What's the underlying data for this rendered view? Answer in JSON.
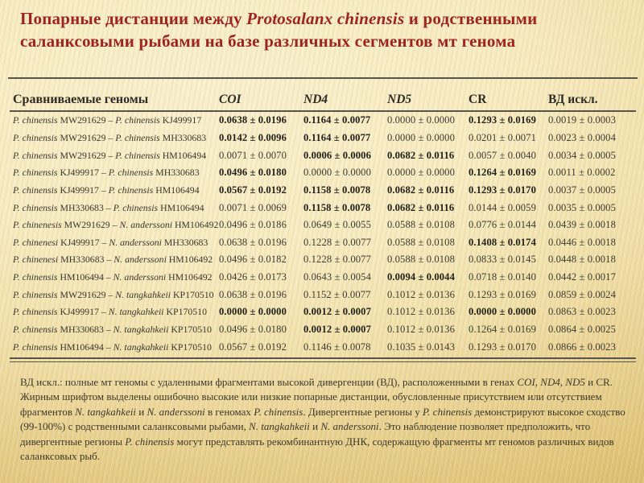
{
  "slide": {
    "title_parts": [
      [
        "Попарные дистанции между ",
        0
      ],
      [
        "Protosalanx chinensis",
        1
      ],
      [
        " и родственными саланксовыми рыбами на базе различных сегментов мт генома",
        0
      ]
    ]
  },
  "table": {
    "headers": [
      {
        "label": "Сравниваемые геномы",
        "italic": false
      },
      {
        "label": "COI",
        "italic": true
      },
      {
        "label": "ND4",
        "italic": true
      },
      {
        "label": "ND5",
        "italic": true
      },
      {
        "label": "CR",
        "italic": false
      },
      {
        "label": "ВД искл.",
        "italic": false
      }
    ],
    "rows": [
      {
        "genomes": [
          [
            "P. chinensis",
            1
          ],
          [
            " MW291629 – ",
            0
          ],
          [
            "P. chinensis",
            1
          ],
          [
            " KJ499917",
            0
          ]
        ],
        "values": [
          {
            "v": "0.0638 ± 0.0196",
            "b": true
          },
          {
            "v": "0.1164 ± 0.0077",
            "b": true
          },
          {
            "v": "0.0000 ± 0.0000",
            "b": false
          },
          {
            "v": "0.1293 ± 0.0169",
            "b": true
          },
          {
            "v": "0.0019 ± 0.0003",
            "b": false
          }
        ]
      },
      {
        "genomes": [
          [
            "P. chinensis",
            1
          ],
          [
            " MW291629 – ",
            0
          ],
          [
            "P. chinensis",
            1
          ],
          [
            " MH330683",
            0
          ]
        ],
        "values": [
          {
            "v": "0.0142 ± 0.0096",
            "b": true
          },
          {
            "v": "0.1164 ± 0.0077",
            "b": true
          },
          {
            "v": "0.0000 ± 0.0000",
            "b": false
          },
          {
            "v": "0.0201 ± 0.0071",
            "b": false
          },
          {
            "v": "0.0023 ± 0.0004",
            "b": false
          }
        ]
      },
      {
        "genomes": [
          [
            "P. chinensis",
            1
          ],
          [
            " MW291629 – ",
            0
          ],
          [
            "P. chinensis",
            1
          ],
          [
            " HM106494",
            0
          ]
        ],
        "values": [
          {
            "v": "0.0071 ± 0.0070",
            "b": false
          },
          {
            "v": "0.0006 ± 0.0006",
            "b": true
          },
          {
            "v": "0.0682 ± 0.0116",
            "b": true
          },
          {
            "v": "0.0057 ± 0.0040",
            "b": false
          },
          {
            "v": "0.0034 ± 0.0005",
            "b": false
          }
        ]
      },
      {
        "genomes": [
          [
            "P. chinensis",
            1
          ],
          [
            " KJ499917 – ",
            0
          ],
          [
            "P. chinensis",
            1
          ],
          [
            " MH330683",
            0
          ]
        ],
        "values": [
          {
            "v": "0.0496 ± 0.0180",
            "b": true
          },
          {
            "v": "0.0000 ± 0.0000",
            "b": false
          },
          {
            "v": "0.0000 ± 0.0000",
            "b": false
          },
          {
            "v": "0.1264 ± 0.0169",
            "b": true
          },
          {
            "v": "0.0011 ± 0.0002",
            "b": false
          }
        ]
      },
      {
        "genomes": [
          [
            "P. chinensis",
            1
          ],
          [
            " KJ499917 – ",
            0
          ],
          [
            "P. chinensis",
            1
          ],
          [
            " HM106494",
            0
          ]
        ],
        "values": [
          {
            "v": "0.0567 ± 0.0192",
            "b": true
          },
          {
            "v": "0.1158 ± 0.0078",
            "b": true
          },
          {
            "v": "0.0682 ± 0.0116",
            "b": true
          },
          {
            "v": "0.1293 ± 0.0170",
            "b": true
          },
          {
            "v": "0.0037 ± 0.0005",
            "b": false
          }
        ]
      },
      {
        "genomes": [
          [
            "P. chinensis",
            1
          ],
          [
            " MH330683 – ",
            0
          ],
          [
            "P. chinensis",
            1
          ],
          [
            " HM106494",
            0
          ]
        ],
        "values": [
          {
            "v": "0.0071 ± 0.0069",
            "b": false
          },
          {
            "v": "0.1158 ± 0.0078",
            "b": true
          },
          {
            "v": "0.0682 ± 0.0116",
            "b": true
          },
          {
            "v": "0.0144 ± 0.0059",
            "b": false
          },
          {
            "v": "0.0035 ± 0.0005",
            "b": false
          }
        ]
      },
      {
        "genomes": [
          [
            "P. chinenesis",
            1
          ],
          [
            " MW291629 – ",
            0
          ],
          [
            "N. anderssoni",
            1
          ],
          [
            " HM106492",
            0
          ]
        ],
        "values": [
          {
            "v": "0.0496 ± 0.0186",
            "b": false
          },
          {
            "v": "0.0649 ± 0.0055",
            "b": false
          },
          {
            "v": "0.0588 ± 0.0108",
            "b": false
          },
          {
            "v": "0.0776 ± 0.0144",
            "b": false
          },
          {
            "v": "0.0439 ± 0.0018",
            "b": false
          }
        ]
      },
      {
        "genomes": [
          [
            "P. chinenesi",
            1
          ],
          [
            " KJ499917 – ",
            0
          ],
          [
            "N. anderssoni",
            1
          ],
          [
            " MH330683",
            0
          ]
        ],
        "values": [
          {
            "v": "0.0638 ± 0.0196",
            "b": false
          },
          {
            "v": "0.1228 ± 0.0077",
            "b": false
          },
          {
            "v": "0.0588 ± 0.0108",
            "b": false
          },
          {
            "v": "0.1408 ± 0.0174",
            "b": true
          },
          {
            "v": "0.0446 ± 0.0018",
            "b": false
          }
        ]
      },
      {
        "genomes": [
          [
            "P. chinenesi",
            1
          ],
          [
            " MH330683 – ",
            0
          ],
          [
            "N. anderssoni",
            1
          ],
          [
            " HM106492",
            0
          ]
        ],
        "values": [
          {
            "v": "0.0496 ± 0.0182",
            "b": false
          },
          {
            "v": "0.1228 ± 0.0077",
            "b": false
          },
          {
            "v": "0.0588 ± 0.0108",
            "b": false
          },
          {
            "v": "0.0833 ± 0.0145",
            "b": false
          },
          {
            "v": "0.0448 ± 0.0018",
            "b": false
          }
        ]
      },
      {
        "genomes": [
          [
            "P. chinensis",
            1
          ],
          [
            " HM106494 – ",
            0
          ],
          [
            "N. anderssoni",
            1
          ],
          [
            " HM106492",
            0
          ]
        ],
        "values": [
          {
            "v": "0.0426 ± 0.0173",
            "b": false
          },
          {
            "v": "0.0643 ± 0.0054",
            "b": false
          },
          {
            "v": "0.0094 ± 0.0044",
            "b": true
          },
          {
            "v": "0.0718 ± 0.0140",
            "b": false
          },
          {
            "v": "0.0442 ± 0.0017",
            "b": false
          }
        ]
      },
      {
        "genomes": [
          [
            "P. chinensis",
            1
          ],
          [
            " MW291629 – ",
            0
          ],
          [
            "N. tangkahkeii",
            1
          ],
          [
            " KP170510",
            0
          ]
        ],
        "values": [
          {
            "v": "0.0638 ± 0.0196",
            "b": false
          },
          {
            "v": "0.1152 ± 0.0077",
            "b": false
          },
          {
            "v": "0.1012 ± 0.0136",
            "b": false
          },
          {
            "v": "0.1293 ± 0.0169",
            "b": false
          },
          {
            "v": "0.0859 ± 0.0024",
            "b": false
          }
        ]
      },
      {
        "genomes": [
          [
            "P. chinensis",
            1
          ],
          [
            " KJ499917 – ",
            0
          ],
          [
            "N. tangkahkeii",
            1
          ],
          [
            " KP170510",
            0
          ]
        ],
        "values": [
          {
            "v": "0.0000 ± 0.0000",
            "b": true
          },
          {
            "v": "0.0012 ± 0.0007",
            "b": true
          },
          {
            "v": "0.1012 ± 0.0136",
            "b": false
          },
          {
            "v": "0.0000 ± 0.0000",
            "b": true
          },
          {
            "v": "0.0863 ± 0.0023",
            "b": false
          }
        ]
      },
      {
        "genomes": [
          [
            "P. chinensis",
            1
          ],
          [
            " MH330683 – ",
            0
          ],
          [
            "N. tangkahkeii",
            1
          ],
          [
            " KP170510",
            0
          ]
        ],
        "values": [
          {
            "v": "0.0496 ± 0.0180",
            "b": false
          },
          {
            "v": "0.0012 ± 0.0007",
            "b": true
          },
          {
            "v": "0.1012 ± 0.0136",
            "b": false
          },
          {
            "v": "0.1264 ± 0.0169",
            "b": false
          },
          {
            "v": "0.0864 ± 0.0025",
            "b": false
          }
        ]
      },
      {
        "genomes": [
          [
            "P. chinensis",
            1
          ],
          [
            " HM106494 – ",
            0
          ],
          [
            "N. tangkahkeii",
            1
          ],
          [
            " KP170510",
            0
          ]
        ],
        "values": [
          {
            "v": "0.0567 ± 0.0192",
            "b": false
          },
          {
            "v": "0.1146 ± 0.0078",
            "b": false
          },
          {
            "v": "0.1035 ± 0.0143",
            "b": false
          },
          {
            "v": "0.1293 ± 0.0170",
            "b": false
          },
          {
            "v": "0.0866 ± 0.0023",
            "b": false
          }
        ]
      }
    ]
  },
  "footnote_parts": [
    [
      "ВД искл.: полные мт геномы с удаленными фрагментами высокой дивергенции (ВД), расположенными в генах ",
      0
    ],
    [
      "COI, ND4, ND5",
      1
    ],
    [
      " и CR. Жирным шрифтом выделены ошибочно высокие или низкие попарные дистанции, обусловленные присутствием или отсутствием фрагментов ",
      0
    ],
    [
      "N. tangkahkeii",
      1
    ],
    [
      " и ",
      0
    ],
    [
      "N. anderssoni",
      1
    ],
    [
      " в геномах ",
      0
    ],
    [
      "P. chinensis",
      1
    ],
    [
      ". Дивергентные регионы у ",
      0
    ],
    [
      "P. chinensis",
      1
    ],
    [
      " демонстрируют высокое сходство (99-100%) с родственными саланксовыми рыбами, ",
      0
    ],
    [
      "N. tangkahkeii",
      1
    ],
    [
      " и ",
      0
    ],
    [
      "N. anderssoni",
      1
    ],
    [
      ". Это наблюдение позволяет предположить, что дивергентные регионы ",
      0
    ],
    [
      "P. chinensis",
      1
    ],
    [
      " могут представлять рекомбинантную ДНК, содержащую  фрагменты мт геномов различных видов саланксовых рыб.",
      0
    ]
  ],
  "colors": {
    "title_red": "#9e2420",
    "rule_dark": "#5a554a",
    "background_cream": "#f7ebc0",
    "background_gold": "#dcbf70"
  }
}
